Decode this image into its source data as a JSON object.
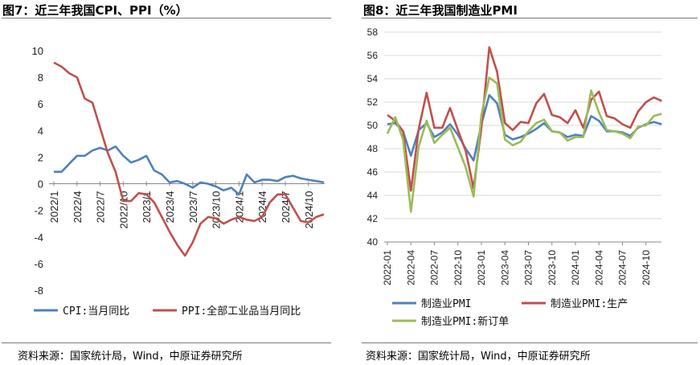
{
  "left": {
    "title": "图7：近三年我国CPI、PPI（%）",
    "source": "资料来源：国家统计局，Wind，中原证券研究所"
  },
  "right": {
    "title": "图8：近三年我国制造业PMI",
    "source": "资料来源：国家统计局，Wind，中原证券研究所"
  },
  "chart_data": [
    {
      "type": "line",
      "ylim": [
        -8,
        10
      ],
      "yticks": [
        "10",
        "8",
        "6",
        "4",
        "2",
        "0",
        "-2",
        "-4",
        "-6",
        "-8"
      ],
      "tick_labels": [
        "2022/1",
        "2022/4",
        "2022/7",
        "2022/10",
        "2023/1",
        "2023/4",
        "2023/7",
        "2023/10",
        "2024/1",
        "2024/4",
        "2024/7",
        "2024/10"
      ],
      "grid": false,
      "legend": "bottom",
      "series": [
        {
          "name": "CPI:当月同比",
          "color": "#4f81bd",
          "values": [
            0.9,
            0.9,
            1.5,
            2.1,
            2.1,
            2.5,
            2.7,
            2.5,
            2.8,
            2.1,
            1.6,
            1.8,
            2.1,
            1.0,
            0.7,
            0.1,
            0.2,
            0.0,
            -0.3,
            0.1,
            0.0,
            -0.2,
            -0.5,
            -0.3,
            -0.8,
            0.7,
            0.1,
            0.3,
            0.3,
            0.2,
            0.5,
            0.6,
            0.4,
            0.3,
            0.2,
            0.1
          ]
        },
        {
          "name": "PPI:全部工业品当月同比",
          "color": "#c0504d",
          "values": [
            9.1,
            8.8,
            8.3,
            8.0,
            6.4,
            6.1,
            4.2,
            2.3,
            0.9,
            -1.3,
            -1.3,
            -0.7,
            -0.8,
            -1.4,
            -2.5,
            -3.6,
            -4.6,
            -5.4,
            -4.4,
            -3.0,
            -2.5,
            -2.6,
            -3.0,
            -2.7,
            -2.5,
            -2.7,
            -2.8,
            -2.5,
            -1.4,
            -0.8,
            -0.8,
            -1.8,
            -2.8,
            -2.9,
            -2.5,
            -2.3
          ]
        }
      ]
    },
    {
      "type": "line",
      "ylim": [
        40,
        58
      ],
      "yticks": [
        "58",
        "56",
        "54",
        "52",
        "50",
        "48",
        "46",
        "44",
        "42",
        "40"
      ],
      "tick_labels": [
        "2022-01",
        "2022-04",
        "2022-07",
        "2022-10",
        "2023-01",
        "2023-04",
        "2023-07",
        "2023-10",
        "2024-01",
        "2024-04",
        "2024-07",
        "2024-10"
      ],
      "grid": true,
      "legend": "bottom",
      "series": [
        {
          "name": "制造业PMI",
          "color": "#4f81bd",
          "values": [
            50.1,
            50.2,
            49.5,
            47.4,
            49.6,
            50.2,
            49.0,
            49.4,
            50.1,
            49.2,
            48.0,
            47.0,
            50.1,
            52.6,
            51.9,
            49.2,
            48.8,
            49.0,
            49.3,
            49.7,
            50.2,
            49.5,
            49.4,
            49.0,
            49.2,
            49.1,
            50.8,
            50.4,
            49.5,
            49.5,
            49.4,
            49.1,
            49.8,
            50.1,
            50.3,
            50.1
          ]
        },
        {
          "name": "制造业PMI:生产",
          "color": "#c0504d",
          "values": [
            50.9,
            50.4,
            49.5,
            44.4,
            49.7,
            52.8,
            49.8,
            49.8,
            51.5,
            49.6,
            47.8,
            44.6,
            49.8,
            56.7,
            54.6,
            50.2,
            49.6,
            50.3,
            50.2,
            51.9,
            52.7,
            50.9,
            50.7,
            50.2,
            51.3,
            49.8,
            52.2,
            52.9,
            50.8,
            50.6,
            50.1,
            49.8,
            51.2,
            52.0,
            52.4,
            52.1
          ]
        },
        {
          "name": "制造业PMI:新订单",
          "color": "#9bbb59",
          "values": [
            49.3,
            50.7,
            48.8,
            42.6,
            48.2,
            50.4,
            48.5,
            49.2,
            49.8,
            48.1,
            46.4,
            43.9,
            50.9,
            54.1,
            53.6,
            48.8,
            48.3,
            48.6,
            49.5,
            50.2,
            50.5,
            49.5,
            49.4,
            48.7,
            49.0,
            49.0,
            53.0,
            51.1,
            49.6,
            49.5,
            49.3,
            48.9,
            49.9,
            50.0,
            50.8,
            51.0
          ]
        }
      ]
    }
  ]
}
